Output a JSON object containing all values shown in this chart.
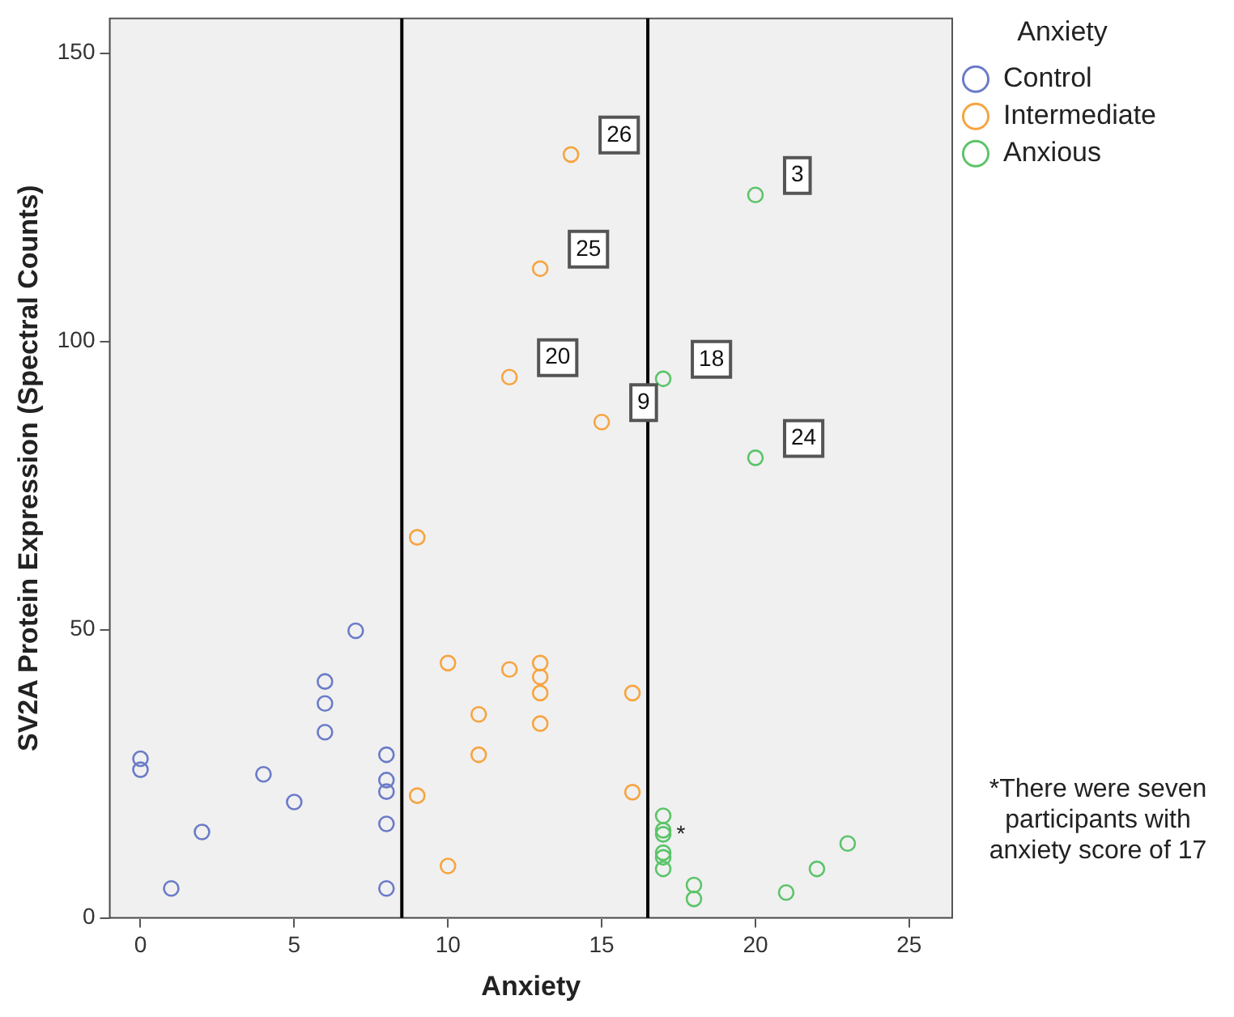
{
  "chart_data": {
    "type": "scatter",
    "xlabel": "Anxiety",
    "ylabel": "SV2A Protein Expression (Spectral Counts)",
    "legend_title": "Anxiety",
    "legend": "right",
    "marker": "circle",
    "grid": false,
    "xlim": [
      -1,
      26.4
    ],
    "xticks": [
      0,
      5,
      10,
      15,
      20,
      25
    ],
    "ylim": [
      0,
      156
    ],
    "yticks": [
      0,
      50,
      100,
      150
    ],
    "series": [
      {
        "name": "Control",
        "color": "#6a7bc8",
        "x": [
          0,
          0,
          1,
          2,
          4,
          5,
          6,
          6,
          6,
          7,
          8,
          8,
          8,
          8,
          8
        ],
        "values": [
          27.6,
          25.7,
          5.1,
          14.9,
          24.9,
          20.1,
          41,
          37.2,
          32.2,
          49.8,
          28.3,
          23.9,
          21.9,
          16.3,
          5.1
        ]
      },
      {
        "name": "Intermediate",
        "color": "#f7a440",
        "x": [
          9,
          9,
          10,
          10,
          11,
          11,
          12,
          13,
          13,
          13,
          13,
          16,
          16,
          14,
          13,
          12,
          15
        ],
        "values": [
          66,
          21.2,
          44.2,
          9,
          35.3,
          28.3,
          43.1,
          44.2,
          41.8,
          39,
          33.7,
          39,
          21.8,
          132.4,
          112.6,
          93.8,
          86
        ]
      },
      {
        "name": "Anxious",
        "color": "#5bc46a",
        "x": [
          20,
          17,
          20,
          17,
          17,
          17,
          17,
          17,
          17,
          18,
          18,
          21,
          22,
          23
        ],
        "values": [
          125.4,
          93.5,
          79.8,
          17.7,
          15.2,
          14.5,
          11.3,
          10.5,
          8.5,
          5.7,
          3.3,
          4.4,
          8.5,
          12.9
        ]
      }
    ],
    "ref_lines": [
      {
        "axis": "x",
        "value": 8.5,
        "color": "#000000"
      },
      {
        "axis": "x",
        "value": 16.5,
        "color": "#000000"
      }
    ],
    "annotations": [
      {
        "text": "26",
        "x": 14,
        "y": 132.4
      },
      {
        "text": "25",
        "x": 13,
        "y": 112.6
      },
      {
        "text": "20",
        "x": 12,
        "y": 93.8
      },
      {
        "text": "9",
        "x": 15,
        "y": 86
      },
      {
        "text": "3",
        "x": 20,
        "y": 125.4
      },
      {
        "text": "18",
        "x": 17,
        "y": 93.5
      },
      {
        "text": "24",
        "x": 20,
        "y": 79.8
      },
      {
        "text": "*",
        "x": 17,
        "y": 14.9
      },
      "*There were seven participants with anxiety score of 17"
    ]
  }
}
